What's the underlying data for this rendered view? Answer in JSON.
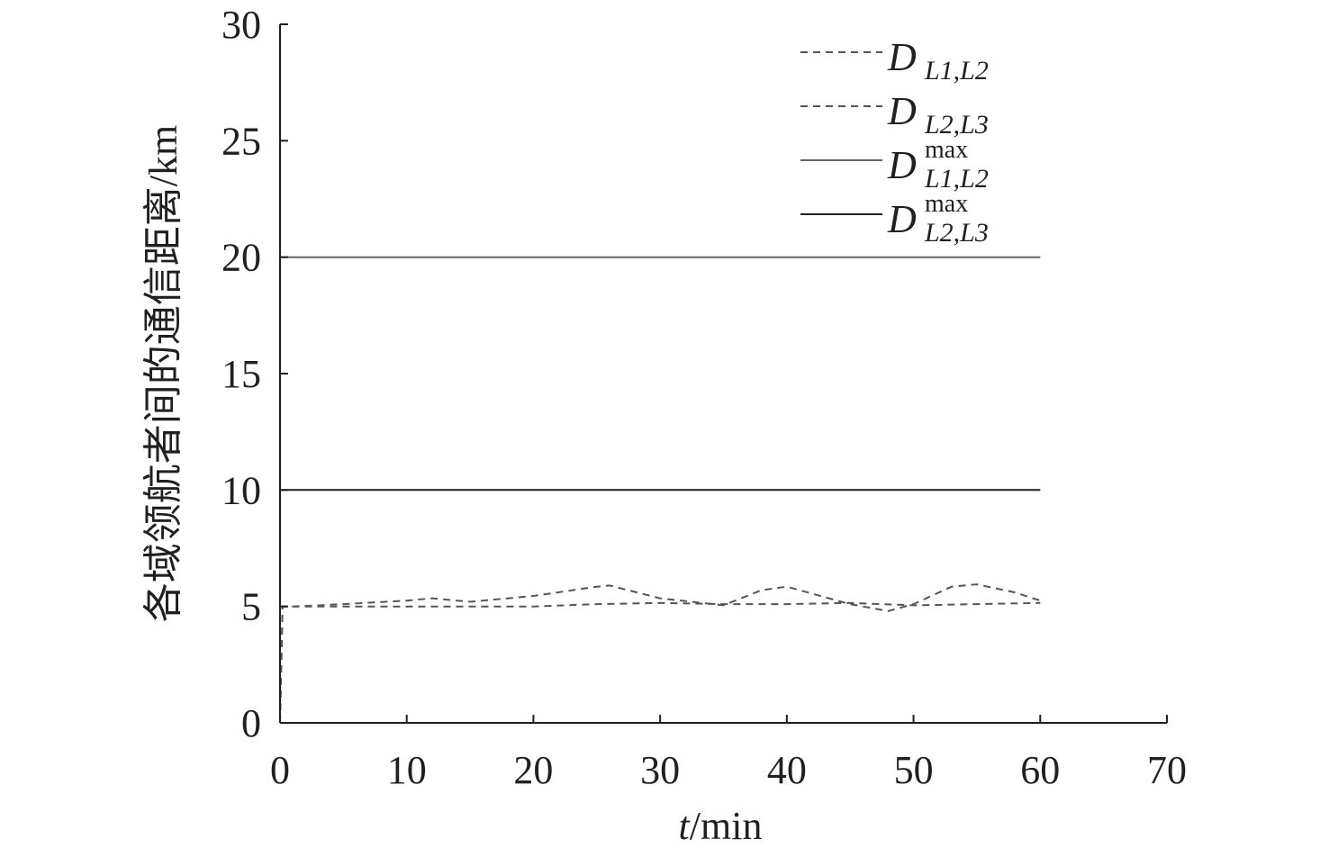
{
  "chart_data": {
    "type": "line",
    "xlabel": {
      "italic": "t",
      "rest": "/min"
    },
    "ylabel": "各域领航者间的通信距离/km",
    "xlim": [
      0,
      70
    ],
    "ylim": [
      0,
      30
    ],
    "xticks": [
      "0",
      "10",
      "20",
      "30",
      "40",
      "50",
      "60",
      "70"
    ],
    "yticks": [
      "0",
      "5",
      "10",
      "15",
      "20",
      "25",
      "30"
    ],
    "legend_position": "top-right",
    "series": [
      {
        "name": "D_{L1,L2}",
        "legend": {
          "main": "D",
          "sub": "L1,L2",
          "sup": ""
        },
        "style": "dashed",
        "color": "#555555",
        "x": [
          0,
          0.2,
          1,
          5,
          10,
          15,
          20,
          25,
          30,
          35,
          40,
          45,
          50,
          55,
          60
        ],
        "y": [
          0,
          5.0,
          5.0,
          5.0,
          5.0,
          5.0,
          5.0,
          5.1,
          5.15,
          5.1,
          5.1,
          5.15,
          5.05,
          5.1,
          5.15
        ]
      },
      {
        "name": "D_{L2,L3}",
        "legend": {
          "main": "D",
          "sub": "L2,L3",
          "sup": ""
        },
        "style": "dashed",
        "color": "#555555",
        "x": [
          0,
          0.2,
          1,
          5,
          10,
          12,
          15,
          20,
          25,
          26,
          30,
          35,
          38,
          40,
          45,
          48,
          50,
          53,
          55,
          58,
          60
        ],
        "y": [
          0,
          5.0,
          5.0,
          5.1,
          5.25,
          5.35,
          5.2,
          5.45,
          5.85,
          5.9,
          5.35,
          5.05,
          5.7,
          5.85,
          5.1,
          4.8,
          5.1,
          5.85,
          5.95,
          5.6,
          5.25
        ]
      },
      {
        "name": "D_{L1,L2}^{max}",
        "legend": {
          "main": "D",
          "sub": "L1,L2",
          "sup": "max"
        },
        "style": "solid",
        "color": "#666666",
        "x": [
          0,
          60
        ],
        "y": [
          20,
          20
        ]
      },
      {
        "name": "D_{L2,L3}^{max}",
        "legend": {
          "main": "D",
          "sub": "L2,L3",
          "sup": "max"
        },
        "style": "solid",
        "color": "#231f20",
        "x": [
          0,
          60
        ],
        "y": [
          10,
          10
        ]
      }
    ]
  }
}
